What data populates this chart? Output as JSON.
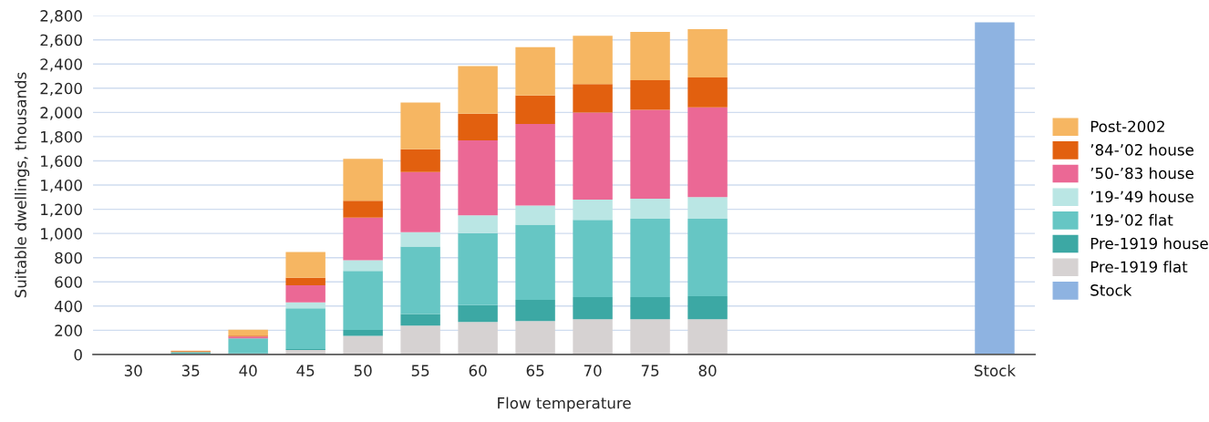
{
  "chart_data": {
    "type": "bar",
    "stacked": true,
    "xlabel": "Flow temperature",
    "ylabel": "Suitable dwellings, thousands",
    "categories": [
      "30",
      "35",
      "40",
      "45",
      "50",
      "55",
      "60",
      "65",
      "70",
      "75",
      "80",
      null,
      null,
      null,
      null,
      "Stock"
    ],
    "series": [
      {
        "name": "Pre-1919 flat",
        "color": "#d6d2d2",
        "values": [
          0,
          0,
          0,
          37,
          154,
          239,
          268,
          277,
          291,
          291,
          291,
          null,
          null,
          null,
          null,
          null
        ]
      },
      {
        "name": "Pre-1919 house",
        "color": "#3ca8a4",
        "values": [
          0,
          5,
          11,
          8,
          48,
          95,
          140,
          174,
          183,
          183,
          191,
          null,
          null,
          null,
          null,
          null
        ]
      },
      {
        "name": "’19-’02 flat",
        "color": "#66c6c4",
        "values": [
          0,
          15,
          122,
          337,
          488,
          558,
          594,
          622,
          639,
          648,
          640,
          null,
          null,
          null,
          null,
          null
        ]
      },
      {
        "name": "’19-’49 house",
        "color": "#bae6e4",
        "values": [
          0,
          0,
          null,
          48,
          88,
          119,
          148,
          157,
          166,
          165,
          179,
          null,
          null,
          null,
          null,
          null
        ]
      },
      {
        "name": "’50-’83 house",
        "color": "#eb6895",
        "values": [
          0,
          null,
          15,
          141,
          353,
          496,
          620,
          674,
          719,
          734,
          742,
          null,
          null,
          null,
          null,
          null
        ]
      },
      {
        "name": "’84-’02 house",
        "color": "#e2600f",
        "values": [
          0,
          7,
          8,
          63,
          140,
          189,
          219,
          236,
          237,
          245,
          246,
          null,
          null,
          null,
          null,
          null
        ]
      },
      {
        "name": "Post-2002",
        "color": "#f6b662",
        "values": [
          0,
          5,
          48,
          213,
          345,
          385,
          394,
          400,
          399,
          400,
          399,
          null,
          null,
          null,
          null,
          null
        ]
      },
      {
        "name": "Stock",
        "color": "#8eb3e1",
        "values": [
          null,
          null,
          null,
          null,
          null,
          null,
          null,
          null,
          null,
          null,
          null,
          null,
          null,
          null,
          null,
          2745
        ]
      }
    ],
    "ylim": [
      0,
      2800
    ],
    "yticks": [
      0,
      200,
      400,
      600,
      800,
      {
        "value": 1000,
        "label": "1,000"
      },
      {
        "value": 1200,
        "label": "1,200"
      },
      {
        "value": 1400,
        "label": "1,400"
      },
      {
        "value": 1600,
        "label": "1,600"
      },
      {
        "value": 1800,
        "label": "1,800"
      },
      {
        "value": 2000,
        "label": "2,000"
      },
      {
        "value": 2200,
        "label": "2,200"
      },
      {
        "value": 2400,
        "label": "2,400"
      },
      {
        "value": 2600,
        "label": "2,600"
      },
      {
        "value": 2800,
        "label": "2,800"
      }
    ],
    "grid": "y",
    "legend": "right"
  }
}
